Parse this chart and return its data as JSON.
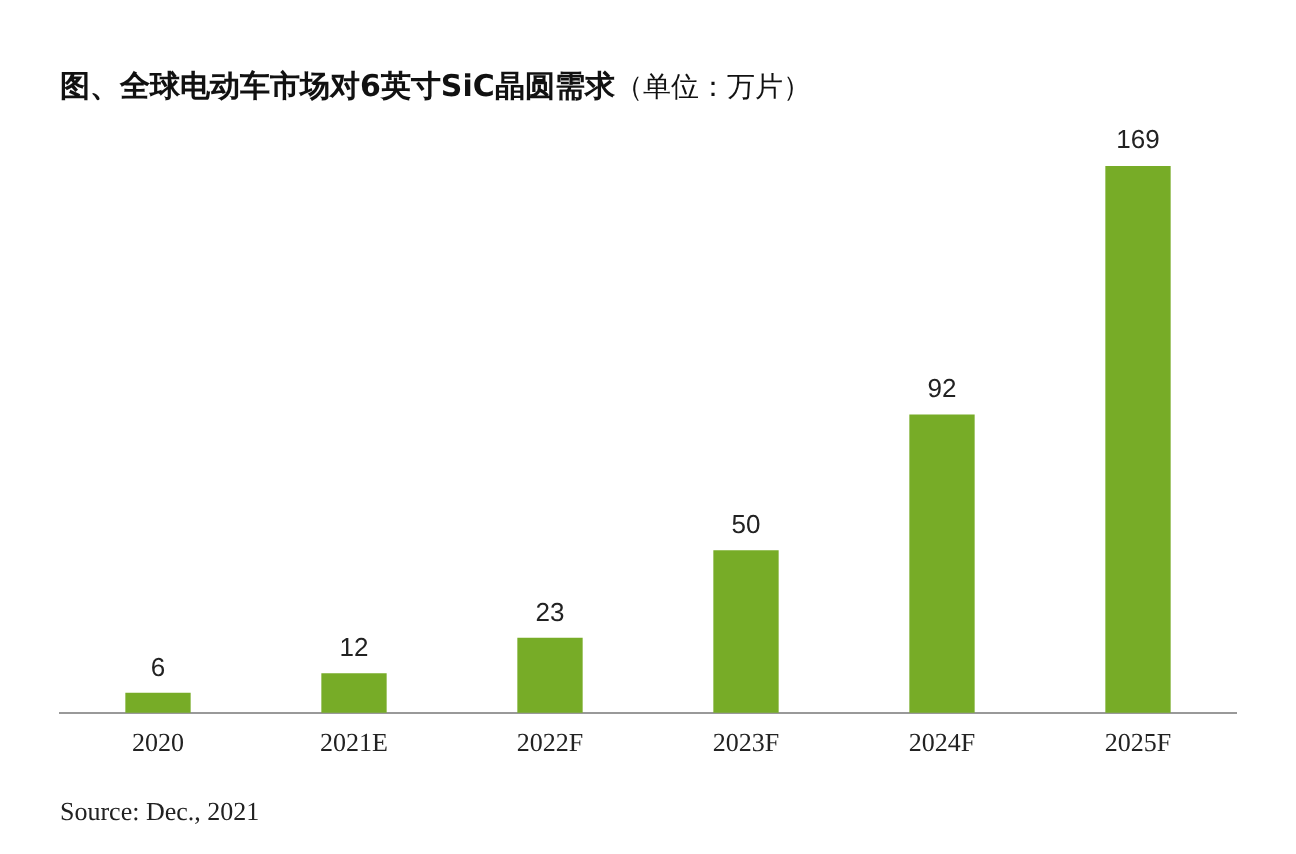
{
  "chart_data": {
    "type": "bar",
    "title": "图、全球电动车市场对6英寸SiC晶圆需求",
    "subtitle": "（单位：万片）",
    "categories": [
      "2020",
      "2021E",
      "2022F",
      "2023F",
      "2024F",
      "2025F"
    ],
    "values": [
      6,
      12,
      23,
      50,
      92,
      169
    ],
    "color": "#77ac27",
    "data_labels": true,
    "grid": false,
    "legend": false,
    "annotations": [
      "Source: Dec., 2021"
    ]
  }
}
